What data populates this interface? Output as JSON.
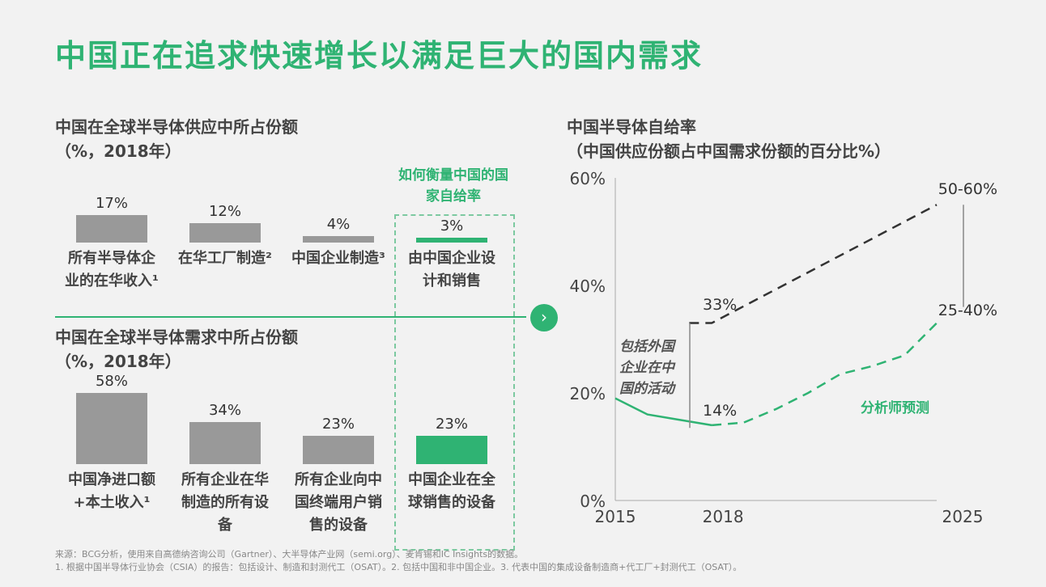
{
  "title": "中国正在追求快速增长以满足巨大的国内需求",
  "supply": {
    "title": "中国在全球半导体供应中所占份额",
    "unit": "（%，2018年）",
    "callout": "如何衡量中国的国家自给率",
    "items": [
      {
        "value": 17,
        "label_text": "17%",
        "label": "所有半导体企业的在华收入¹",
        "highlight": false
      },
      {
        "value": 12,
        "label_text": "12%",
        "label": "在华工厂制造²",
        "highlight": false
      },
      {
        "value": 4,
        "label_text": "4%",
        "label": "中国企业制造³",
        "highlight": false
      },
      {
        "value": 3,
        "label_text": "3%",
        "label": "由中国企业设计和销售",
        "highlight": true
      }
    ]
  },
  "demand": {
    "title": "中国在全球半导体需求中所占份额",
    "unit": "（%，2018年）",
    "items": [
      {
        "value": 58,
        "label_text": "58%",
        "label": "中国净进口额+本土收入¹",
        "highlight": false
      },
      {
        "value": 34,
        "label_text": "34%",
        "label": "所有企业在华制造的所有设备",
        "highlight": false
      },
      {
        "value": 23,
        "label_text": "23%",
        "label": "所有企业向中国终端用户销售的设备",
        "highlight": false
      },
      {
        "value": 23,
        "label_text": "23%",
        "label": "中国企业在全球销售的设备",
        "highlight": true
      }
    ]
  },
  "chart_data": {
    "type": "line",
    "title": "中国半导体自给率",
    "subtitle": "（中国供应份额占中国需求份额的百分比%）",
    "ylim": [
      0,
      60
    ],
    "yticks": [
      "0%",
      "20%",
      "40%",
      "60%"
    ],
    "ytick_values": [
      0,
      20,
      40,
      60
    ],
    "xlim": [
      2015,
      2025
    ],
    "xticks": [
      "2015",
      "2018",
      "2025"
    ],
    "xtick_values": [
      2015,
      2018,
      2025
    ],
    "series": [
      {
        "style": "solid",
        "color": "#2fb373",
        "x": [
          2015,
          2016,
          2017,
          2018
        ],
        "y": [
          19,
          16,
          15,
          14
        ]
      },
      {
        "style": "dashed",
        "color": "#2fb373",
        "x": [
          2018,
          2019,
          2020,
          2021,
          2022,
          2023,
          2024,
          2025
        ],
        "y": [
          14,
          14.5,
          17,
          20,
          23.5,
          25,
          27,
          33
        ]
      },
      {
        "style": "dashed",
        "color": "#333333",
        "x": [
          2017.3,
          2018,
          2025
        ],
        "y": [
          33,
          33,
          55
        ]
      }
    ],
    "annotations": {
      "a33": "33%",
      "a14": "14%",
      "a5060": "50-60%",
      "a2540": "25-40%",
      "foreign": "包括外国企业在中国的活动",
      "forecast": "分析师预测"
    }
  },
  "notes": [
    "来源：BCG分析，使用来自高德纳咨询公司（Gartner）、大半导体产业网（semi.org）、麦肯锡和IC Insights的数据。",
    "1. 根据中国半导体行业协会（CSIA）的报告：包括设计、制造和封测代工（OSAT）。2. 包括中国和非中国企业。3. 代表中国的集成设备制造商+代工厂+封测代工（OSAT）。"
  ],
  "colors": {
    "accent": "#2fb373",
    "bar": "#999999"
  }
}
